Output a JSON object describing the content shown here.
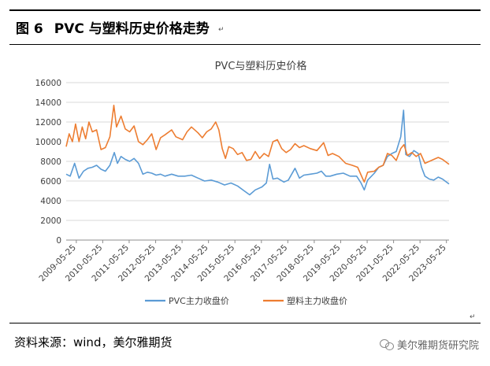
{
  "figure": {
    "number": "图 6",
    "title": "PVC 与塑料历史价格走势"
  },
  "source": "资料来源：wind，美尔雅期货",
  "watermark": "美尔雅期货研究院",
  "colors": {
    "pvc": "#5B9BD5",
    "plastic": "#ED7D31",
    "grid": "#d9d9d9",
    "axis": "#8c8c8c"
  },
  "chart_data": {
    "type": "line",
    "title": "PVC与塑料历史价格",
    "xlabel": "",
    "ylabel": "",
    "ylim": [
      0,
      16000
    ],
    "yticks": [
      "16000",
      "14000",
      "12000",
      "10000",
      "8000",
      "6000",
      "4000",
      "2000",
      "0"
    ],
    "xticks": [
      "2009-05-25",
      "2010-05-25",
      "2011-05-25",
      "2012-05-25",
      "2013-05-25",
      "2014-05-25",
      "2015-05-25",
      "2016-05-25",
      "2017-05-25",
      "2018-05-25",
      "2019-05-25",
      "2020-05-25",
      "2021-05-25",
      "2022-05-25",
      "2023-05-25"
    ],
    "x_range": [
      "2009-01-05",
      "2023-06-30"
    ],
    "grid": "horizontal",
    "legend_position": "bottom",
    "series": [
      {
        "name": "PVC主力收盘价",
        "points": [
          [
            "2009-01-05",
            6700
          ],
          [
            "2009-03-01",
            6500
          ],
          [
            "2009-05-01",
            7800
          ],
          [
            "2009-07-01",
            6300
          ],
          [
            "2009-09-01",
            7000
          ],
          [
            "2009-11-01",
            7300
          ],
          [
            "2010-01-01",
            7400
          ],
          [
            "2010-03-01",
            7600
          ],
          [
            "2010-05-01",
            7200
          ],
          [
            "2010-07-01",
            7000
          ],
          [
            "2010-09-01",
            7600
          ],
          [
            "2010-11-01",
            8900
          ],
          [
            "2010-12-15",
            7800
          ],
          [
            "2011-02-01",
            8500
          ],
          [
            "2011-04-01",
            8200
          ],
          [
            "2011-06-01",
            8000
          ],
          [
            "2011-08-01",
            8300
          ],
          [
            "2011-10-01",
            7800
          ],
          [
            "2011-12-01",
            6700
          ],
          [
            "2012-02-01",
            6900
          ],
          [
            "2012-04-01",
            6800
          ],
          [
            "2012-06-01",
            6600
          ],
          [
            "2012-08-01",
            6700
          ],
          [
            "2012-10-01",
            6500
          ],
          [
            "2013-01-01",
            6700
          ],
          [
            "2013-04-01",
            6500
          ],
          [
            "2013-07-01",
            6500
          ],
          [
            "2013-10-01",
            6600
          ],
          [
            "2014-01-01",
            6300
          ],
          [
            "2014-04-01",
            6000
          ],
          [
            "2014-07-01",
            6100
          ],
          [
            "2014-10-01",
            5900
          ],
          [
            "2015-01-01",
            5600
          ],
          [
            "2015-04-01",
            5800
          ],
          [
            "2015-07-01",
            5500
          ],
          [
            "2015-10-01",
            5000
          ],
          [
            "2015-12-15",
            4600
          ],
          [
            "2016-03-01",
            5100
          ],
          [
            "2016-06-01",
            5400
          ],
          [
            "2016-08-01",
            5800
          ],
          [
            "2016-09-15",
            7700
          ],
          [
            "2016-11-01",
            6200
          ],
          [
            "2017-01-01",
            6300
          ],
          [
            "2017-04-01",
            5900
          ],
          [
            "2017-06-01",
            6100
          ],
          [
            "2017-09-01",
            7300
          ],
          [
            "2017-11-01",
            6300
          ],
          [
            "2018-01-01",
            6600
          ],
          [
            "2018-04-01",
            6700
          ],
          [
            "2018-07-01",
            6800
          ],
          [
            "2018-09-01",
            7000
          ],
          [
            "2018-11-01",
            6500
          ],
          [
            "2019-01-01",
            6500
          ],
          [
            "2019-04-01",
            6700
          ],
          [
            "2019-07-01",
            6800
          ],
          [
            "2019-10-01",
            6500
          ],
          [
            "2020-01-01",
            6500
          ],
          [
            "2020-03-01",
            5800
          ],
          [
            "2020-04-15",
            5100
          ],
          [
            "2020-06-01",
            6100
          ],
          [
            "2020-09-01",
            6800
          ],
          [
            "2020-11-01",
            7400
          ],
          [
            "2021-01-01",
            7600
          ],
          [
            "2021-03-01",
            8500
          ],
          [
            "2021-05-01",
            8800
          ],
          [
            "2021-07-01",
            9000
          ],
          [
            "2021-09-01",
            10500
          ],
          [
            "2021-10-10",
            13200
          ],
          [
            "2021-11-10",
            8700
          ],
          [
            "2022-01-01",
            8500
          ],
          [
            "2022-03-01",
            9100
          ],
          [
            "2022-05-01",
            8800
          ],
          [
            "2022-06-15",
            7400
          ],
          [
            "2022-08-01",
            6500
          ],
          [
            "2022-10-01",
            6200
          ],
          [
            "2022-12-01",
            6100
          ],
          [
            "2023-02-01",
            6400
          ],
          [
            "2023-04-01",
            6200
          ],
          [
            "2023-06-30",
            5700
          ]
        ]
      },
      {
        "name": "塑料主力收盘价",
        "points": [
          [
            "2009-01-05",
            9500
          ],
          [
            "2009-02-15",
            10800
          ],
          [
            "2009-04-01",
            10000
          ],
          [
            "2009-05-15",
            11800
          ],
          [
            "2009-07-01",
            10000
          ],
          [
            "2009-08-15",
            11500
          ],
          [
            "2009-10-01",
            10300
          ],
          [
            "2009-11-15",
            12000
          ],
          [
            "2010-01-01",
            11000
          ],
          [
            "2010-03-01",
            11200
          ],
          [
            "2010-05-01",
            9200
          ],
          [
            "2010-07-01",
            9400
          ],
          [
            "2010-09-01",
            10500
          ],
          [
            "2010-10-25",
            13700
          ],
          [
            "2010-12-01",
            11500
          ],
          [
            "2011-02-01",
            12600
          ],
          [
            "2011-04-01",
            11300
          ],
          [
            "2011-06-01",
            11000
          ],
          [
            "2011-08-01",
            11600
          ],
          [
            "2011-10-01",
            10000
          ],
          [
            "2011-12-01",
            9700
          ],
          [
            "2012-02-01",
            10200
          ],
          [
            "2012-04-01",
            10800
          ],
          [
            "2012-06-01",
            9200
          ],
          [
            "2012-08-01",
            10400
          ],
          [
            "2012-10-01",
            10700
          ],
          [
            "2013-01-01",
            11200
          ],
          [
            "2013-03-01",
            10500
          ],
          [
            "2013-06-01",
            10200
          ],
          [
            "2013-08-01",
            11000
          ],
          [
            "2013-10-01",
            11500
          ],
          [
            "2014-01-01",
            10900
          ],
          [
            "2014-03-01",
            10400
          ],
          [
            "2014-05-01",
            11000
          ],
          [
            "2014-07-01",
            11300
          ],
          [
            "2014-09-01",
            12000
          ],
          [
            "2014-10-15",
            11200
          ],
          [
            "2014-12-01",
            9300
          ],
          [
            "2015-01-15",
            8300
          ],
          [
            "2015-03-01",
            9500
          ],
          [
            "2015-05-01",
            9300
          ],
          [
            "2015-07-01",
            8700
          ],
          [
            "2015-09-01",
            8900
          ],
          [
            "2015-11-01",
            8100
          ],
          [
            "2016-01-01",
            8200
          ],
          [
            "2016-03-01",
            9000
          ],
          [
            "2016-05-01",
            8300
          ],
          [
            "2016-07-01",
            8800
          ],
          [
            "2016-09-01",
            8500
          ],
          [
            "2016-11-01",
            10000
          ],
          [
            "2017-01-01",
            10200
          ],
          [
            "2017-03-01",
            9300
          ],
          [
            "2017-05-01",
            8900
          ],
          [
            "2017-07-01",
            9200
          ],
          [
            "2017-09-01",
            9800
          ],
          [
            "2017-11-01",
            9400
          ],
          [
            "2018-01-01",
            9600
          ],
          [
            "2018-04-01",
            9300
          ],
          [
            "2018-07-01",
            9100
          ],
          [
            "2018-10-01",
            9900
          ],
          [
            "2018-12-01",
            8600
          ],
          [
            "2019-02-01",
            8800
          ],
          [
            "2019-05-01",
            8500
          ],
          [
            "2019-08-01",
            7800
          ],
          [
            "2019-11-01",
            7600
          ],
          [
            "2020-01-15",
            7400
          ],
          [
            "2020-03-15",
            6400
          ],
          [
            "2020-04-15",
            5900
          ],
          [
            "2020-06-01",
            6900
          ],
          [
            "2020-09-01",
            7000
          ],
          [
            "2020-11-01",
            7400
          ],
          [
            "2021-01-01",
            7600
          ],
          [
            "2021-03-01",
            8800
          ],
          [
            "2021-05-01",
            8600
          ],
          [
            "2021-07-01",
            8100
          ],
          [
            "2021-09-01",
            9300
          ],
          [
            "2021-10-15",
            9700
          ],
          [
            "2021-12-01",
            8600
          ],
          [
            "2022-02-01",
            8900
          ],
          [
            "2022-04-01",
            8500
          ],
          [
            "2022-06-01",
            8800
          ],
          [
            "2022-08-01",
            7800
          ],
          [
            "2022-10-01",
            8000
          ],
          [
            "2022-12-01",
            8200
          ],
          [
            "2023-02-01",
            8400
          ],
          [
            "2023-04-01",
            8200
          ],
          [
            "2023-06-30",
            7700
          ]
        ]
      }
    ]
  }
}
